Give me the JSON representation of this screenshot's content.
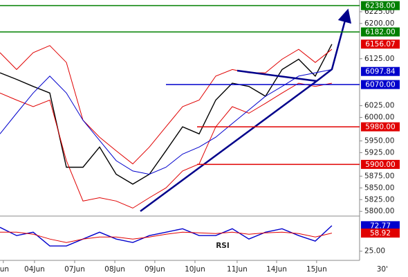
{
  "chart_data": [
    {
      "type": "line",
      "x": [
        0,
        1,
        2,
        3,
        4,
        5,
        6,
        7,
        8,
        9,
        10,
        11,
        12,
        13,
        14,
        15,
        16,
        17,
        18,
        19,
        20
      ],
      "xlim": [
        0,
        21.67
      ],
      "ylim": [
        5790,
        6250
      ],
      "yticks": [
        {
          "value": 6225,
          "label": "6225.00"
        },
        {
          "value": 6200,
          "label": "6200.00"
        },
        {
          "value": 6125,
          "label": "6125.00"
        },
        {
          "value": 6025,
          "label": "6025.00"
        },
        {
          "value": 6000,
          "label": "6000.00"
        },
        {
          "value": 5950,
          "label": "5950.00"
        },
        {
          "value": 5925,
          "label": "5925.00"
        },
        {
          "value": 5875,
          "label": "5875.00"
        },
        {
          "value": 5850,
          "label": "5850.00"
        },
        {
          "value": 5825,
          "label": "5825.00"
        },
        {
          "value": 5800,
          "label": "5800.00"
        }
      ],
      "series": [
        {
          "color": "#000000",
          "values": [
            6095,
            6081,
            6066,
            6052,
            5894,
            5894,
            5937,
            5879,
            5858,
            5879,
            5929,
            5980,
            5965,
            6037,
            6073,
            6066,
            6045,
            6102,
            6124,
            6088,
            6156
          ]
        },
        {
          "color": "#e00000",
          "values": [
            6138,
            6102,
            6138,
            6153,
            6117,
            5994,
            5958,
            5929,
            5901,
            5937,
            5980,
            6023,
            6037,
            6088,
            6102,
            6095,
            6095,
            6124,
            6145,
            6117,
            6145
          ]
        },
        {
          "color": "#e00000",
          "values": [
            6052,
            6037,
            6023,
            6037,
            5908,
            5822,
            5829,
            5822,
            5807,
            5829,
            5850,
            5886,
            5901,
            5980,
            6023,
            6009,
            6030,
            6052,
            6073,
            6066,
            6073
          ]
        },
        {
          "color": "#0000cc",
          "values": [
            5965,
            6009,
            6052,
            6088,
            6052,
            5994,
            5951,
            5908,
            5886,
            5879,
            5894,
            5922,
            5937,
            5958,
            5987,
            6016,
            6045,
            6066,
            6088,
            6095,
            6102
          ]
        }
      ],
      "levels": [
        {
          "value": 6238,
          "label": "6238.00",
          "color": "#008000",
          "line": true
        },
        {
          "value": 6182,
          "label": "6182.00",
          "color": "#008000",
          "line": true
        },
        {
          "value": 6156.07,
          "label": "6156.07",
          "color": "#e00000",
          "line": false
        },
        {
          "value": 6097.84,
          "label": "6097.84",
          "color": "#0000cc",
          "line": false
        },
        {
          "value": 6070,
          "label": "6070.00",
          "color": "#0000cc",
          "line": true
        },
        {
          "value": 5980,
          "label": "5980.00",
          "color": "#e00000",
          "line": true
        },
        {
          "value": 5900,
          "label": "5900.00",
          "color": "#e00000",
          "line": true
        }
      ]
    },
    {
      "type": "line",
      "title": "RSI",
      "x": [
        0,
        1,
        2,
        3,
        4,
        5,
        6,
        7,
        8,
        9,
        10,
        11,
        12,
        13,
        14,
        15,
        16,
        17,
        18,
        19,
        20
      ],
      "xlim": [
        0,
        21.67
      ],
      "ylim": [
        13,
        83
      ],
      "yticks": [
        {
          "value": 25,
          "label": "25.00"
        }
      ],
      "xticks": [
        {
          "value": 0.2,
          "label": "Jun"
        },
        {
          "value": 2.08,
          "label": "04Jun"
        },
        {
          "value": 4.5,
          "label": "07Jun"
        },
        {
          "value": 6.92,
          "label": "08Jun"
        },
        {
          "value": 9.33,
          "label": "09Jun"
        },
        {
          "value": 11.75,
          "label": "10Jun"
        },
        {
          "value": 14.29,
          "label": "11Jun"
        },
        {
          "value": 16.67,
          "label": "14Jun"
        },
        {
          "value": 19.08,
          "label": "15Jun"
        },
        {
          "value": 23.04,
          "label": "30'"
        }
      ],
      "series": [
        {
          "color": "#0000cc",
          "values": [
            69.7,
            54.2,
            60.6,
            34.8,
            34.8,
            47.7,
            60.6,
            47.7,
            41.3,
            54.2,
            60.6,
            67.1,
            54.2,
            54.2,
            67.1,
            47.7,
            60.6,
            67.1,
            54.2,
            43.9,
            72.77
          ]
        },
        {
          "color": "#e00000",
          "values": [
            60.6,
            60.6,
            56.8,
            47.7,
            41.3,
            47.7,
            51.6,
            51.6,
            47.7,
            51.6,
            56.8,
            60.6,
            59.4,
            58.1,
            60.6,
            56.8,
            59.4,
            60.6,
            58.1,
            51.6,
            58.92
          ]
        }
      ],
      "levels": [
        {
          "value": 72.77,
          "label": "72.77",
          "color": "#0000cc",
          "line": false
        },
        {
          "value": 58.92,
          "label": "58.92",
          "color": "#e00000",
          "line": false
        }
      ]
    }
  ]
}
